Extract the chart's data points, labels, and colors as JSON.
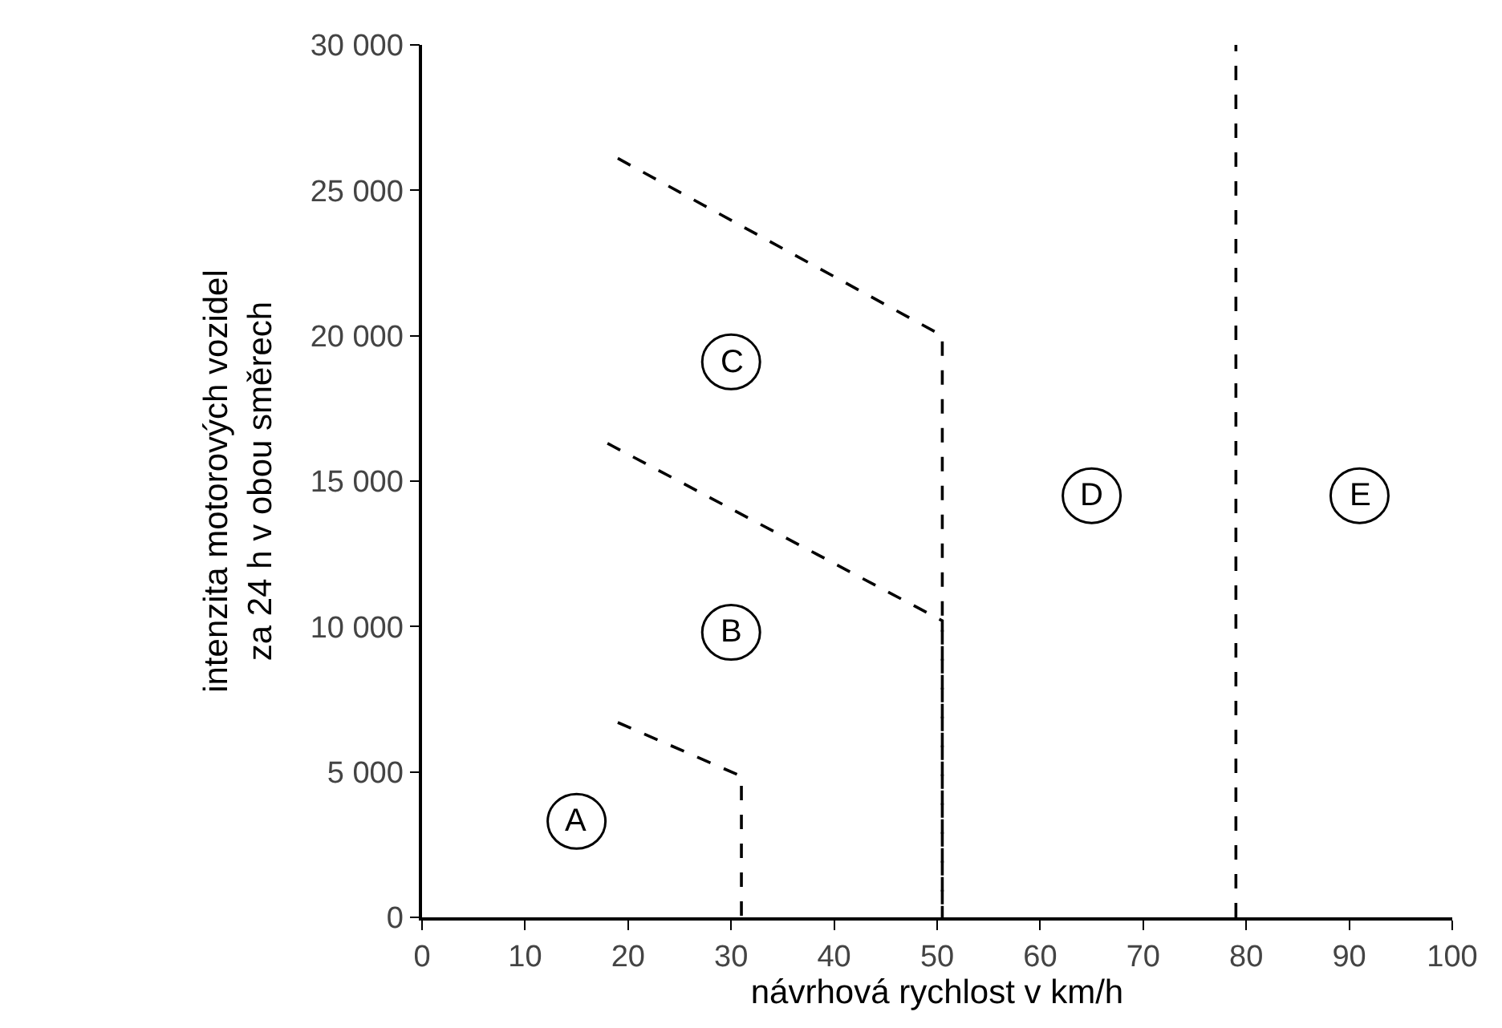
{
  "chart_data": {
    "type": "line",
    "xlabel": "návrhová rychlost v km/h",
    "ylabel": "intenzita motorových vozidel\nza 24 h v obou směrech",
    "series": [
      {
        "color": "#000000",
        "x": [
          19,
          31,
          31
        ],
        "values": [
          6700,
          4850,
          0
        ]
      },
      {
        "color": "#000000",
        "x": [
          18,
          50.5,
          50.5
        ],
        "values": [
          16300,
          10200,
          0
        ]
      },
      {
        "color": "#000000",
        "x": [
          19,
          50.5,
          50.5
        ],
        "values": [
          26100,
          20000,
          0
        ]
      },
      {
        "color": "#000000",
        "x": [
          79,
          79
        ],
        "values": [
          0,
          30000
        ]
      }
    ],
    "line_style": "dashed",
    "marker": "none",
    "xlim": [
      0,
      100
    ],
    "xticks": [
      0,
      10,
      20,
      30,
      40,
      50,
      60,
      70,
      80,
      90,
      100
    ],
    "ylim": [
      0,
      30000
    ],
    "yticks": [
      {
        "value": 0,
        "label": "0"
      },
      {
        "value": 5000,
        "label": "5 000"
      },
      {
        "value": 10000,
        "label": "10 000"
      },
      {
        "value": 15000,
        "label": "15 000"
      },
      {
        "value": 20000,
        "label": "20 000"
      },
      {
        "value": 25000,
        "label": "25 000"
      },
      {
        "value": 30000,
        "label": "30 000"
      }
    ],
    "annotations": [
      {
        "text": "A",
        "x": 15,
        "y": 3300
      },
      {
        "text": "B",
        "x": 30,
        "y": 9800
      },
      {
        "text": "C",
        "x": 30,
        "y": 19100
      },
      {
        "text": "D",
        "x": 65,
        "y": 14500
      },
      {
        "text": "E",
        "x": 91,
        "y": 14500
      }
    ]
  }
}
